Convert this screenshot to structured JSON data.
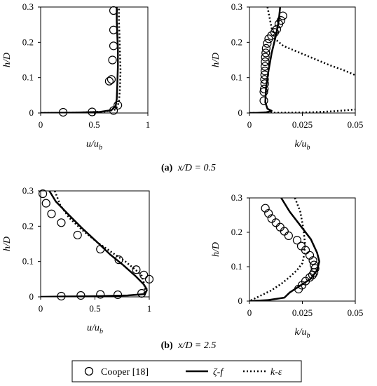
{
  "captions": {
    "a_letter": "(a)",
    "a_rest": "x/D = 0.5",
    "b_letter": "(b)",
    "b_rest": "x/D = 2.5"
  },
  "legend": {
    "items": [
      {
        "label": "Cooper [18]",
        "marker": "circle"
      },
      {
        "label": "ζ-f",
        "style": "solid"
      },
      {
        "label": "k-ε",
        "style": "dotted"
      }
    ]
  },
  "colors": {
    "line": "#000000",
    "background": "#ffffff"
  },
  "chart_data": [
    {
      "id": "a-u",
      "type": "line",
      "xlabel": "u/u_b",
      "ylabel": "h/D",
      "xlim": [
        0,
        1
      ],
      "ylim": [
        0,
        0.3
      ],
      "xticks": [
        "0",
        "0.5",
        "1"
      ],
      "yticks": [
        "0",
        "0.1",
        "0.2",
        "0.3"
      ],
      "grid": false,
      "series": [
        {
          "name": "Cooper [18]",
          "style": "markers",
          "x": [
            0.68,
            0.68,
            0.68,
            0.67,
            0.66,
            0.64,
            0.72,
            0.68,
            0.48,
            0.21
          ],
          "y": [
            0.29,
            0.235,
            0.19,
            0.15,
            0.095,
            0.09,
            0.022,
            0.007,
            0.003,
            0.002
          ]
        },
        {
          "name": "ζ-f",
          "style": "solid",
          "x": [
            0,
            0.3,
            0.55,
            0.66,
            0.7,
            0.71,
            0.715,
            0.72,
            0.72,
            0.715,
            0.71,
            0.71
          ],
          "y": [
            0,
            0.001,
            0.003,
            0.008,
            0.02,
            0.04,
            0.08,
            0.13,
            0.18,
            0.22,
            0.26,
            0.3
          ]
        },
        {
          "name": "k-ε",
          "style": "dotted",
          "x": [
            0,
            0.35,
            0.6,
            0.7,
            0.73,
            0.74,
            0.745,
            0.74,
            0.735,
            0.73,
            0.73
          ],
          "y": [
            0,
            0.001,
            0.004,
            0.01,
            0.03,
            0.07,
            0.12,
            0.17,
            0.22,
            0.26,
            0.3
          ]
        }
      ]
    },
    {
      "id": "a-k",
      "type": "line",
      "xlabel": "k/u_b",
      "ylabel": "h/D",
      "xlim": [
        0,
        0.05
      ],
      "ylim": [
        0,
        0.3
      ],
      "xticks": [
        "0",
        "0.025",
        "0.05"
      ],
      "yticks": [
        "0",
        "0.1",
        "0.2",
        "0.3"
      ],
      "grid": false,
      "series": [
        {
          "name": "Cooper [18]",
          "style": "markers",
          "x": [
            0.0158,
            0.0149,
            0.0139,
            0.0129,
            0.0119,
            0.0104,
            0.0091,
            0.0084,
            0.0079,
            0.0077,
            0.0075,
            0.0074,
            0.0073,
            0.0073,
            0.0072,
            0.0071,
            0.0072,
            0.007,
            0.0068,
            0.0068
          ],
          "y": [
            0.275,
            0.262,
            0.252,
            0.237,
            0.228,
            0.219,
            0.21,
            0.197,
            0.183,
            0.17,
            0.158,
            0.145,
            0.132,
            0.119,
            0.108,
            0.095,
            0.083,
            0.068,
            0.06,
            0.035
          ]
        },
        {
          "name": "ζ-f",
          "style": "solid",
          "x": [
            0,
            0.004,
            0.008,
            0.0105,
            0.0085,
            0.0075,
            0.0078,
            0.009,
            0.0105,
            0.0125,
            0.0138,
            0.0145
          ],
          "y": [
            0,
            0.0005,
            0.002,
            0.006,
            0.012,
            0.03,
            0.07,
            0.12,
            0.17,
            0.22,
            0.26,
            0.3
          ]
        },
        {
          "name": "k-ε",
          "style": "dotted",
          "x": [
            0.0085,
            0.0095,
            0.0105,
            0.012,
            0.016,
            0.022,
            0.03,
            0.038,
            0.045,
            0.05
          ],
          "y": [
            0.3,
            0.27,
            0.24,
            0.21,
            0.19,
            0.175,
            0.155,
            0.135,
            0.12,
            0.107
          ]
        },
        {
          "name": "k-ε",
          "style": "dotted",
          "x": [
            0,
            0.008,
            0.02,
            0.03,
            0.04,
            0.05
          ],
          "y": [
            0,
            0.0005,
            0.001,
            0.002,
            0.005,
            0.01
          ]
        }
      ]
    },
    {
      "id": "b-u",
      "type": "line",
      "xlabel": "u/u_b",
      "ylabel": "h/D",
      "xlim": [
        0,
        1
      ],
      "ylim": [
        0,
        0.3
      ],
      "xticks": [
        "0",
        "0.5",
        "1"
      ],
      "yticks": [
        "0",
        "0.1",
        "0.2",
        "0.3"
      ],
      "grid": false,
      "series": [
        {
          "name": "Cooper [18]",
          "style": "markers",
          "x": [
            0.02,
            0.05,
            0.1,
            0.19,
            0.34,
            0.55,
            0.72,
            0.88,
            0.95,
            1.0,
            0.93,
            0.71,
            0.55,
            0.37,
            0.19
          ],
          "y": [
            0.292,
            0.265,
            0.235,
            0.21,
            0.175,
            0.135,
            0.105,
            0.077,
            0.062,
            0.05,
            0.01,
            0.006,
            0.007,
            0.004,
            0.002
          ]
        },
        {
          "name": "ζ-f",
          "style": "solid",
          "x": [
            0.08,
            0.14,
            0.25,
            0.38,
            0.52,
            0.64,
            0.76,
            0.87,
            0.95,
            0.98
          ],
          "y": [
            0.3,
            0.27,
            0.235,
            0.195,
            0.155,
            0.12,
            0.09,
            0.06,
            0.035,
            0.02
          ]
        },
        {
          "name": "ζ-f",
          "style": "solid",
          "x": [
            0,
            0.2,
            0.5,
            0.8,
            0.96,
            0.98
          ],
          "y": [
            0,
            0.001,
            0.002,
            0.004,
            0.008,
            0.02
          ]
        },
        {
          "name": "k-ε",
          "style": "dotted",
          "x": [
            0.13,
            0.18,
            0.26,
            0.38,
            0.52,
            0.66,
            0.78,
            0.88,
            0.93,
            0.95,
            0.96,
            0.95
          ],
          "y": [
            0.3,
            0.26,
            0.225,
            0.19,
            0.155,
            0.125,
            0.1,
            0.075,
            0.06,
            0.04,
            0.02,
            0.005
          ]
        }
      ]
    },
    {
      "id": "b-k",
      "type": "line",
      "xlabel": "k/u_b",
      "ylabel": "h/D",
      "xlim": [
        0,
        0.05
      ],
      "ylim": [
        0,
        0.3
      ],
      "xticks": [
        "0",
        "0.025",
        "0.05"
      ],
      "yticks": [
        "0",
        "0.1",
        "0.2",
        "0.3"
      ],
      "grid": false,
      "series": [
        {
          "name": "Cooper [18]",
          "style": "markers",
          "x": [
            0.0075,
            0.009,
            0.0105,
            0.0125,
            0.0145,
            0.0165,
            0.0185,
            0.0225,
            0.0245,
            0.0265,
            0.0285,
            0.03,
            0.0305,
            0.031,
            0.0305,
            0.0298,
            0.0285,
            0.0265,
            0.0248,
            0.0232
          ],
          "y": [
            0.27,
            0.255,
            0.24,
            0.228,
            0.215,
            0.203,
            0.19,
            0.177,
            0.16,
            0.148,
            0.133,
            0.118,
            0.105,
            0.095,
            0.083,
            0.076,
            0.069,
            0.058,
            0.046,
            0.035
          ]
        },
        {
          "name": "ζ-f",
          "style": "solid",
          "x": [
            0.015,
            0.019,
            0.024,
            0.029,
            0.032,
            0.033,
            0.032,
            0.029,
            0.024,
            0.019,
            0.0165,
            0.009,
            0
          ],
          "y": [
            0.3,
            0.26,
            0.22,
            0.18,
            0.14,
            0.115,
            0.09,
            0.065,
            0.045,
            0.025,
            0.01,
            0.003,
            0
          ]
        },
        {
          "name": "k-ε",
          "style": "dotted",
          "x": [
            0.0215,
            0.024,
            0.0255,
            0.0262,
            0.026,
            0.025,
            0.0225,
            0.019,
            0.015,
            0.01,
            0.004,
            0
          ],
          "y": [
            0.3,
            0.26,
            0.21,
            0.17,
            0.14,
            0.11,
            0.09,
            0.07,
            0.05,
            0.03,
            0.012,
            0
          ]
        }
      ]
    }
  ]
}
